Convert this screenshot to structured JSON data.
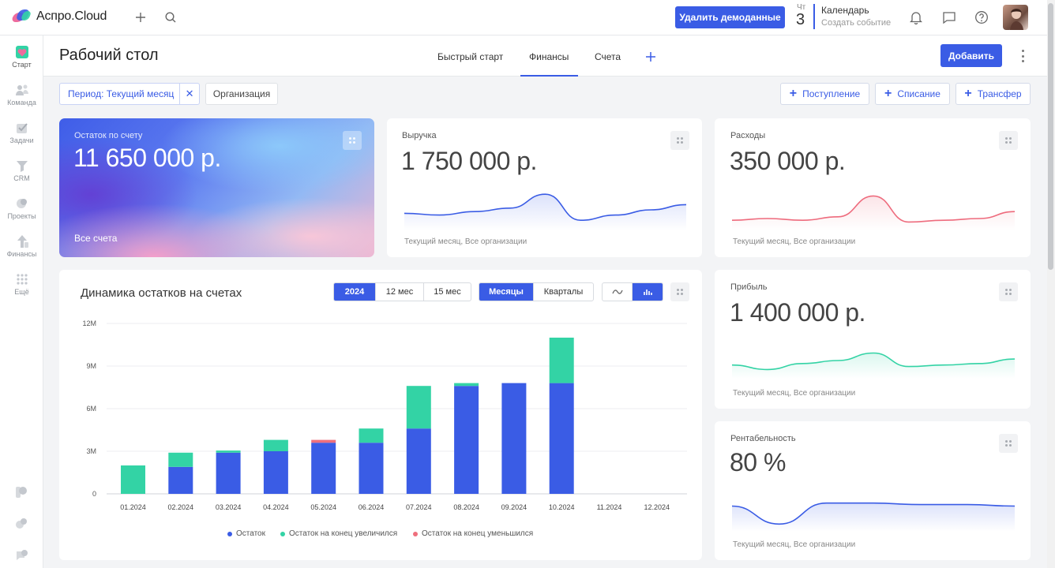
{
  "app": {
    "brand": "Аспро.Cloud"
  },
  "topbar": {
    "demo_button": "Удалить демоданные",
    "calendar": {
      "day_name": "Чт",
      "day_num": "3",
      "title": "Календарь",
      "subtitle": "Создать событие"
    }
  },
  "sidebar": {
    "items": [
      {
        "label": "Старт",
        "icon": "heart-icon"
      },
      {
        "label": "Команда",
        "icon": "team-icon"
      },
      {
        "label": "Задачи",
        "icon": "tasks-icon"
      },
      {
        "label": "CRM",
        "icon": "funnel-icon"
      },
      {
        "label": "Проекты",
        "icon": "projects-icon"
      },
      {
        "label": "Финансы",
        "icon": "finance-icon"
      },
      {
        "label": "Ещё",
        "icon": "grid-icon"
      }
    ]
  },
  "header": {
    "title": "Рабочий стол",
    "tabs": [
      "Быстрый старт",
      "Финансы",
      "Счета"
    ],
    "active_tab": "Финансы",
    "add_button": "Добавить"
  },
  "filters": {
    "period": "Период: Текущий месяц",
    "org": "Организация"
  },
  "actions": {
    "income": "Поступление",
    "expense": "Списание",
    "transfer": "Трансфер"
  },
  "cards": {
    "balance": {
      "label": "Остаток по счету",
      "value": "11 650 000 р.",
      "footer": "Все счета"
    },
    "revenue": {
      "label": "Выручка",
      "value": "1 750 000 р.",
      "footer": "Текущий месяц, Все организации"
    },
    "expenses": {
      "label": "Расходы",
      "value": "350 000 р.",
      "footer": "Текущий месяц, Все организации"
    },
    "profit": {
      "label": "Прибыль",
      "value": "1 400 000 р.",
      "footer": "Текущий месяц, Все организации"
    },
    "margin": {
      "label": "Рентабельность",
      "value": "80 %",
      "footer": "Текущий месяц, Все организации"
    }
  },
  "colors": {
    "accent": "#3a5ce5",
    "balance": "#3a5ce5",
    "increase": "#33d3a5",
    "decrease": "#ef6f7d",
    "revenue_line": "#3a5ce5",
    "expense_line": "#ee6b7d",
    "profit_line": "#33d3a5"
  },
  "dynamics": {
    "title": "Динамика остатков на счетах",
    "range_options": [
      "2024",
      "12 мес",
      "15 мес"
    ],
    "range_selected": "2024",
    "grouping_options": [
      "Месяцы",
      "Кварталы"
    ],
    "grouping_selected": "Месяцы",
    "view_selected": "bar"
  },
  "chart_data": {
    "type": "bar",
    "stacked": true,
    "categories": [
      "01.2024",
      "02.2024",
      "03.2024",
      "04.2024",
      "05.2024",
      "06.2024",
      "07.2024",
      "08.2024",
      "09.2024",
      "10.2024",
      "11.2024",
      "12.2024"
    ],
    "yticks": [
      "12M",
      "9M",
      "6M",
      "3M",
      "0"
    ],
    "ylim": [
      0,
      12
    ],
    "series": [
      {
        "name": "Остаток",
        "values": [
          0,
          1.9,
          2.9,
          3.0,
          3.6,
          3.6,
          4.6,
          7.6,
          7.8,
          7.8,
          0,
          0
        ]
      },
      {
        "name": "Остаток на конец увеличился",
        "values": [
          2.0,
          1.0,
          0.15,
          0.8,
          0,
          1.0,
          3.0,
          0.2,
          0,
          3.2,
          0,
          0
        ]
      },
      {
        "name": "Остаток на конец уменьшился",
        "values": [
          0,
          0,
          0,
          0,
          0.2,
          0,
          0,
          0,
          0,
          0,
          0,
          0
        ]
      }
    ],
    "legend": "bottom",
    "grid": true
  },
  "sparklines": {
    "revenue": [
      0.4,
      0.35,
      0.45,
      0.55,
      0.95,
      0.2,
      0.35,
      0.5,
      0.65
    ],
    "expenses": [
      0.2,
      0.25,
      0.2,
      0.3,
      0.9,
      0.15,
      0.2,
      0.25,
      0.45
    ],
    "profit": [
      0.35,
      0.2,
      0.4,
      0.5,
      0.75,
      0.3,
      0.35,
      0.4,
      0.55
    ],
    "margin": [
      0.75,
      0.15,
      0.85,
      0.85,
      0.8,
      0.8,
      0.75
    ]
  }
}
